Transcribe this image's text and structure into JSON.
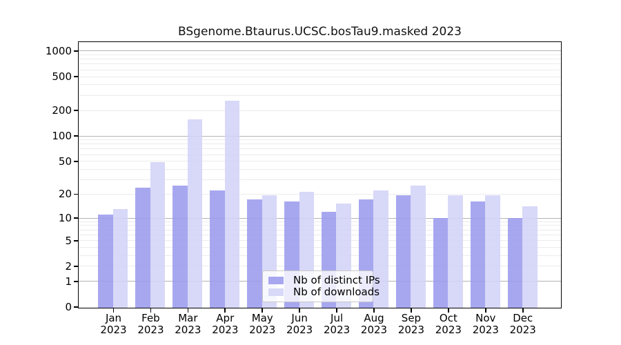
{
  "chart_data": {
    "type": "bar",
    "title": "BSgenome.Btaurus.UCSC.bosTau9.masked 2023",
    "categories": [
      "Jan",
      "Feb",
      "Mar",
      "Apr",
      "May",
      "Jun",
      "Jul",
      "Aug",
      "Sep",
      "Oct",
      "Nov",
      "Dec"
    ],
    "year_label": "2023",
    "series": [
      {
        "name": "Nb of distinct IPs",
        "color": "#a7a7f0",
        "values": [
          11,
          24,
          25,
          22,
          17,
          16,
          12,
          17,
          19,
          10,
          16,
          10
        ]
      },
      {
        "name": "Nb of downloads",
        "color": "#d8d8f8",
        "values": [
          13,
          48,
          155,
          260,
          19,
          21,
          15,
          22,
          25,
          19,
          19,
          14
        ]
      }
    ],
    "xlabel": "",
    "ylabel": "",
    "yscale": "log10(value+1)",
    "yticks": [
      0,
      1,
      2,
      5,
      10,
      20,
      50,
      100,
      200,
      500,
      1000
    ],
    "ylim": [
      0,
      1250
    ],
    "grid": {
      "major_color": "#b3b3b3",
      "minor_color": "#ebebeb",
      "minor_at": "2,3,4,5,6,7,8,9 per decade"
    },
    "legend": {
      "position": "inside-bottom-center"
    },
    "axis_color": "#000000"
  }
}
